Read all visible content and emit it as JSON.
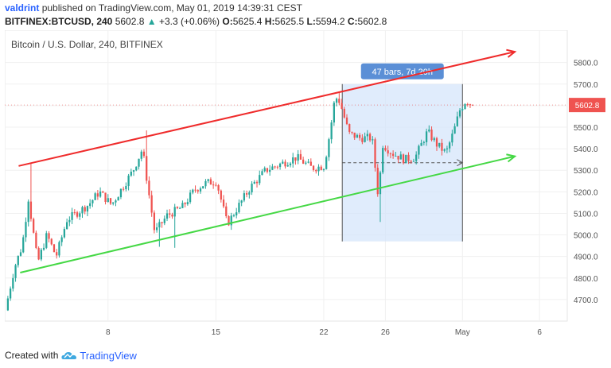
{
  "header": {
    "username": "valdrint",
    "published_text": "published on TradingView.com, May 01, 2019 14:39:31 CEST",
    "symbol": "BITFINEX:BTCUSD, 240",
    "last_price": "5602.8",
    "change": "+3.3 (+0.06%)",
    "o_label": "O:",
    "o_value": "5625.4",
    "h_label": "H:",
    "h_value": "5625.5",
    "l_label": "L:",
    "l_value": "5594.2",
    "c_label": "C:",
    "c_value": "5602.8"
  },
  "footer": {
    "created_with": "Created with",
    "brand": "TradingView"
  },
  "colors": {
    "up": "#26a69a",
    "down": "#ef5350",
    "upper_trendline": "#ef2b2b",
    "lower_trendline": "#45d845",
    "range_fill": "#d6e6fb",
    "range_badge": "#5b8fd6",
    "price_label": "#ef5350"
  },
  "chart_data": {
    "type": "candlestick",
    "title": "Bitcoin / U.S. Dollar, 240, BITFINEX",
    "ylim": [
      4600,
      5950
    ],
    "y_ticks": [
      4700,
      4800,
      4900,
      5000,
      5100,
      5200,
      5300,
      5400,
      5500,
      5600,
      5700,
      5800
    ],
    "x_ticks": [
      {
        "label": "8",
        "day": 8
      },
      {
        "label": "15",
        "day": 15
      },
      {
        "label": "22",
        "day": 22
      },
      {
        "label": "26",
        "day": 26
      },
      {
        "label": "May",
        "day": 31
      },
      {
        "label": "6",
        "day": 36
      }
    ],
    "xlim_days": [
      1.3,
      37.8
    ],
    "last_price": 5602.8,
    "last_price_label": "5602.8",
    "range_measure": {
      "label": "47 bars, 7d 20h",
      "start_day": 23.2,
      "end_day": 31.0,
      "low": 4970,
      "high": 5700,
      "mid_price": 5335
    },
    "trendlines": [
      {
        "name": "upper",
        "points": [
          [
            2.2,
            5320
          ],
          [
            34.4,
            5850
          ]
        ]
      },
      {
        "name": "lower",
        "points": [
          [
            2.3,
            4825
          ],
          [
            34.4,
            5365
          ]
        ]
      }
    ],
    "waypoints": [
      [
        1.5,
        4650
      ],
      [
        2.1,
        4850
      ],
      [
        2.6,
        4950
      ],
      [
        3.0,
        5170
      ],
      [
        3.6,
        4870
      ],
      [
        4.2,
        5000
      ],
      [
        4.8,
        4900
      ],
      [
        5.5,
        5070
      ],
      [
        6.3,
        5110
      ],
      [
        6.9,
        5140
      ],
      [
        7.6,
        5200
      ],
      [
        8.4,
        5140
      ],
      [
        9.1,
        5220
      ],
      [
        9.8,
        5300
      ],
      [
        10.4,
        5400
      ],
      [
        10.8,
        5200
      ],
      [
        11.2,
        5010
      ],
      [
        12.0,
        5090
      ],
      [
        13.0,
        5130
      ],
      [
        13.8,
        5210
      ],
      [
        14.5,
        5240
      ],
      [
        15.2,
        5250
      ],
      [
        15.9,
        5050
      ],
      [
        16.6,
        5130
      ],
      [
        17.4,
        5220
      ],
      [
        18.4,
        5300
      ],
      [
        19.4,
        5330
      ],
      [
        20.4,
        5360
      ],
      [
        21.4,
        5310
      ],
      [
        22.2,
        5320
      ],
      [
        22.6,
        5490
      ],
      [
        22.9,
        5640
      ],
      [
        23.2,
        5620
      ],
      [
        23.8,
        5470
      ],
      [
        24.5,
        5450
      ],
      [
        25.3,
        5450
      ],
      [
        25.7,
        5180
      ],
      [
        26.0,
        5420
      ],
      [
        26.6,
        5380
      ],
      [
        27.4,
        5350
      ],
      [
        28.1,
        5360
      ],
      [
        28.9,
        5480
      ],
      [
        29.5,
        5420
      ],
      [
        30.1,
        5380
      ],
      [
        30.6,
        5480
      ],
      [
        31.0,
        5580
      ],
      [
        31.4,
        5625
      ],
      [
        31.8,
        5603
      ]
    ],
    "spikes": [
      {
        "day": 3.0,
        "high": 5335
      },
      {
        "day": 10.5,
        "high": 5485
      },
      {
        "day": 11.4,
        "low": 4945
      },
      {
        "day": 12.3,
        "low": 4940
      },
      {
        "day": 25.7,
        "low": 5060
      },
      {
        "day": 23.0,
        "high": 5660
      }
    ]
  }
}
